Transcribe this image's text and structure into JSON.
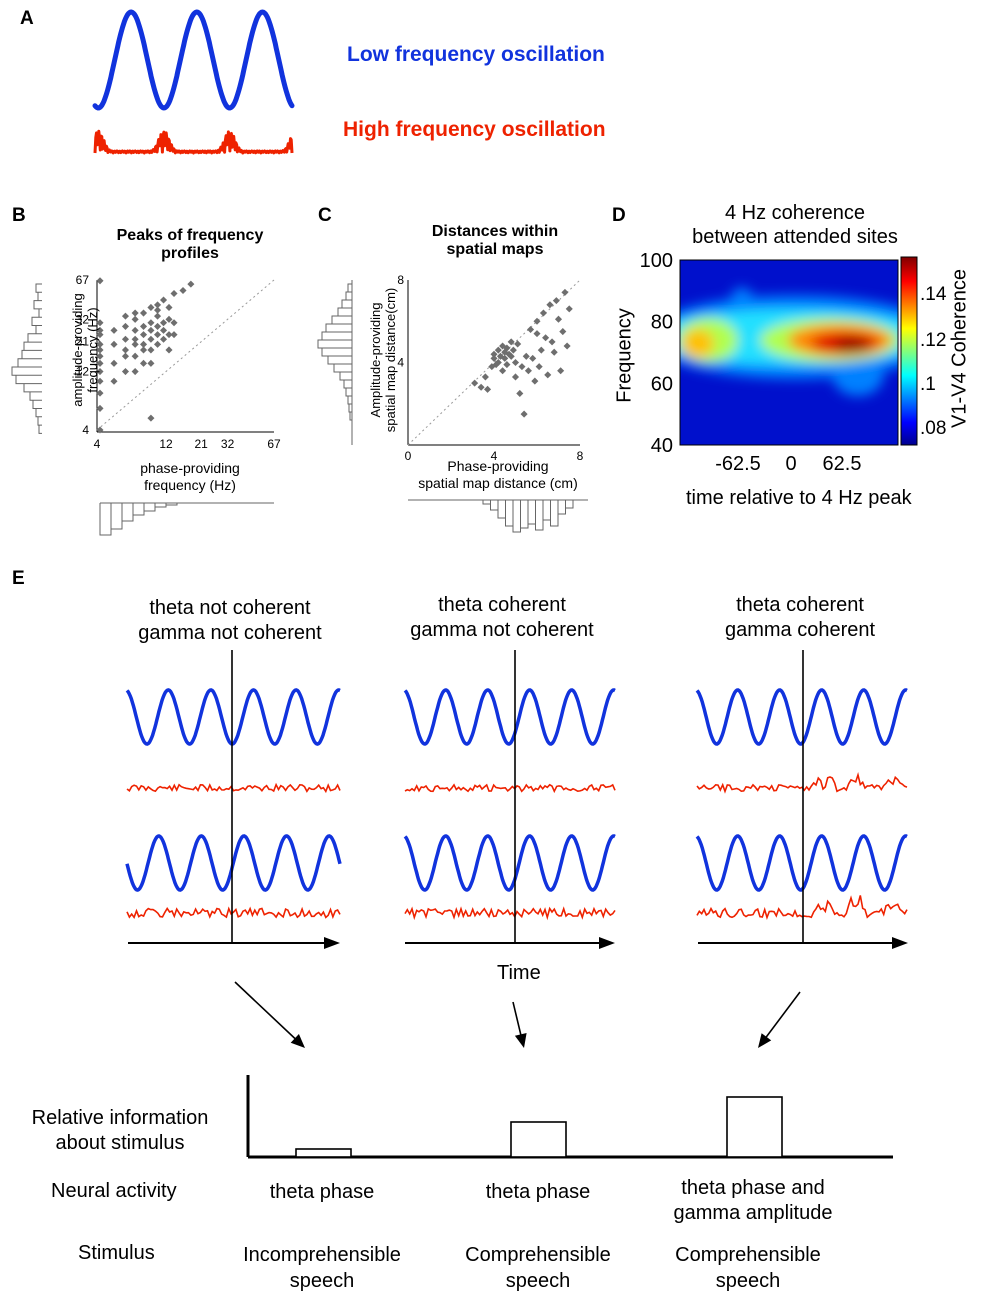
{
  "panel_a": {
    "label": "A",
    "low_label": "Low frequency oscillation",
    "high_label": "High frequency oscillation",
    "colors": {
      "low": "#1133dd",
      "high": "#ee2200"
    }
  },
  "panel_b": {
    "label": "B",
    "title_line1": "Peaks of frequency",
    "title_line2": "profiles",
    "ylabel_line1": "amplitude-providing",
    "ylabel_line2": "frequency (Hz)",
    "xlabel_line1": "phase-providing",
    "xlabel_line2": "frequency (Hz)",
    "xticks": [
      "4",
      "12",
      "21",
      "32",
      "67"
    ],
    "yticks": [
      "67",
      "32",
      "21",
      "12",
      "4"
    ]
  },
  "panel_c": {
    "label": "C",
    "title_line1": "Distances within",
    "title_line2": "spatial maps",
    "ylabel_line1": "Amplitude-providing",
    "ylabel_line2": "spatial map distance(cm)",
    "xlabel_line1": "Phase-providing",
    "xlabel_line2": "spatial map distance (cm)",
    "xticks": [
      "0",
      "4",
      "8"
    ],
    "yticks": [
      "8",
      "4",
      "0"
    ]
  },
  "panel_d": {
    "label": "D",
    "title_line1": "4 Hz coherence",
    "title_line2": "between attended sites",
    "ylabel": "Frequency",
    "xlabel": "time relative to 4 Hz peak",
    "yticks": [
      "100",
      "80",
      "60",
      "40"
    ],
    "xticks": [
      "-62.5",
      "0",
      "62.5"
    ],
    "colorbar_label": "V1-V4 Coherence",
    "colorbar_ticks": [
      ".14",
      ".12",
      ".1",
      ".08"
    ]
  },
  "panel_e": {
    "label": "E",
    "conditions": [
      {
        "line1": "theta not coherent",
        "line2": "gamma not coherent"
      },
      {
        "line1": "theta coherent",
        "line2": "gamma not coherent"
      },
      {
        "line1": "theta coherent",
        "line2": "gamma coherent"
      }
    ],
    "time_label": "Time",
    "row_labels": {
      "info_line1": "Relative information",
      "info_line2": "about stimulus",
      "neural": "Neural activity",
      "stimulus": "Stimulus"
    },
    "neural_activity": [
      "theta phase",
      "theta phase",
      "theta phase and|gamma amplitude"
    ],
    "neural_line1": [
      "theta phase",
      "theta phase",
      "theta phase and"
    ],
    "neural_line2": [
      "",
      "",
      "gamma amplitude"
    ],
    "stimulus_line1": [
      "Incomprehensible",
      "Comprehensible",
      "Comprehensible"
    ],
    "stimulus_line2": [
      "speech",
      "speech",
      "speech"
    ],
    "relative_information": [
      0.08,
      0.35,
      0.6
    ]
  },
  "chart_data": [
    {
      "type": "scatter",
      "panel": "B",
      "title": "Peaks of frequency profiles",
      "xlabel": "phase-providing frequency (Hz)",
      "ylabel": "amplitude-providing frequency (Hz)",
      "xticks": [
        "4",
        "12",
        "21",
        "32",
        "67"
      ],
      "yticks": [
        "4",
        "12",
        "21",
        "32",
        "67"
      ],
      "reference_line": "diagonal",
      "points": [
        [
          4,
          4
        ],
        [
          4,
          6
        ],
        [
          4,
          8
        ],
        [
          4,
          10
        ],
        [
          4,
          12
        ],
        [
          4,
          14
        ],
        [
          4,
          16
        ],
        [
          4,
          18
        ],
        [
          4,
          20
        ],
        [
          4,
          24
        ],
        [
          4,
          26
        ],
        [
          4,
          30
        ],
        [
          4,
          66
        ],
        [
          5,
          10
        ],
        [
          5,
          14
        ],
        [
          5,
          20
        ],
        [
          5,
          26
        ],
        [
          6,
          12
        ],
        [
          6,
          16
        ],
        [
          6,
          18
        ],
        [
          6,
          22
        ],
        [
          6,
          28
        ],
        [
          6,
          34
        ],
        [
          7,
          12
        ],
        [
          7,
          16
        ],
        [
          7,
          20
        ],
        [
          7,
          22
        ],
        [
          7,
          26
        ],
        [
          7,
          32
        ],
        [
          7,
          36
        ],
        [
          8,
          14
        ],
        [
          8,
          18
        ],
        [
          8,
          20
        ],
        [
          8,
          24
        ],
        [
          8,
          28
        ],
        [
          8,
          36
        ],
        [
          9,
          5
        ],
        [
          9,
          14
        ],
        [
          9,
          18
        ],
        [
          9,
          22
        ],
        [
          9,
          26
        ],
        [
          9,
          30
        ],
        [
          9,
          40
        ],
        [
          10,
          20
        ],
        [
          10,
          24
        ],
        [
          10,
          28
        ],
        [
          10,
          34
        ],
        [
          10,
          38
        ],
        [
          10,
          42
        ],
        [
          11,
          22
        ],
        [
          11,
          26
        ],
        [
          11,
          30
        ],
        [
          11,
          46
        ],
        [
          12,
          18
        ],
        [
          12,
          24
        ],
        [
          12,
          32
        ],
        [
          12,
          40
        ],
        [
          13,
          24
        ],
        [
          13,
          30
        ],
        [
          13,
          52
        ],
        [
          15,
          55
        ],
        [
          17,
          62
        ]
      ]
    },
    {
      "type": "scatter",
      "panel": "C",
      "title": "Distances within spatial maps",
      "xlabel": "Phase-providing spatial map distance (cm)",
      "ylabel": "Amplitude-providing spatial map distance(cm)",
      "xlim": [
        0,
        8
      ],
      "ylim": [
        0,
        8
      ],
      "reference_line": "diagonal",
      "points": [
        [
          3.1,
          3.0
        ],
        [
          3.4,
          2.8
        ],
        [
          3.6,
          3.3
        ],
        [
          3.7,
          2.7
        ],
        [
          3.9,
          3.8
        ],
        [
          4.0,
          4.2
        ],
        [
          4.0,
          4.4
        ],
        [
          4.1,
          3.9
        ],
        [
          4.2,
          4.6
        ],
        [
          4.2,
          4.0
        ],
        [
          4.3,
          4.3
        ],
        [
          4.4,
          3.6
        ],
        [
          4.4,
          4.8
        ],
        [
          4.5,
          4.2
        ],
        [
          4.5,
          4.5
        ],
        [
          4.6,
          3.9
        ],
        [
          4.6,
          4.7
        ],
        [
          4.7,
          4.4
        ],
        [
          4.8,
          5.0
        ],
        [
          4.8,
          4.3
        ],
        [
          4.9,
          4.6
        ],
        [
          5.0,
          4.0
        ],
        [
          5.0,
          3.3
        ],
        [
          5.1,
          4.9
        ],
        [
          5.2,
          2.5
        ],
        [
          5.3,
          3.8
        ],
        [
          5.4,
          1.5
        ],
        [
          5.5,
          4.3
        ],
        [
          5.6,
          3.6
        ],
        [
          5.7,
          5.6
        ],
        [
          5.8,
          4.2
        ],
        [
          5.9,
          3.1
        ],
        [
          6.0,
          5.4
        ],
        [
          6.0,
          6.0
        ],
        [
          6.1,
          3.8
        ],
        [
          6.2,
          4.6
        ],
        [
          6.3,
          6.4
        ],
        [
          6.4,
          5.2
        ],
        [
          6.5,
          3.4
        ],
        [
          6.6,
          6.8
        ],
        [
          6.7,
          5.0
        ],
        [
          6.8,
          4.5
        ],
        [
          6.9,
          7.0
        ],
        [
          7.0,
          6.1
        ],
        [
          7.1,
          3.6
        ],
        [
          7.2,
          5.5
        ],
        [
          7.3,
          7.4
        ],
        [
          7.4,
          4.8
        ],
        [
          7.5,
          6.6
        ]
      ]
    },
    {
      "type": "heatmap",
      "panel": "D",
      "title": "4 Hz coherence between attended sites",
      "xlabel": "time relative to 4 Hz peak",
      "ylabel": "Frequency",
      "ylim": [
        40,
        100
      ],
      "xticks": [
        "-62.5",
        "0",
        "62.5"
      ],
      "colorbar": {
        "label": "V1-V4 Coherence",
        "ticks": [
          ".08",
          ".1",
          ".12",
          ".14"
        ],
        "colormap": "jet"
      },
      "peak": {
        "time": 80,
        "frequency": 73
      }
    },
    {
      "type": "bar",
      "panel": "E",
      "ylabel": "Relative information about stimulus",
      "categories": [
        "Incomprehensible speech",
        "Comprehensible speech",
        "Comprehensible speech"
      ],
      "values": [
        0.08,
        0.35,
        0.6
      ]
    }
  ]
}
